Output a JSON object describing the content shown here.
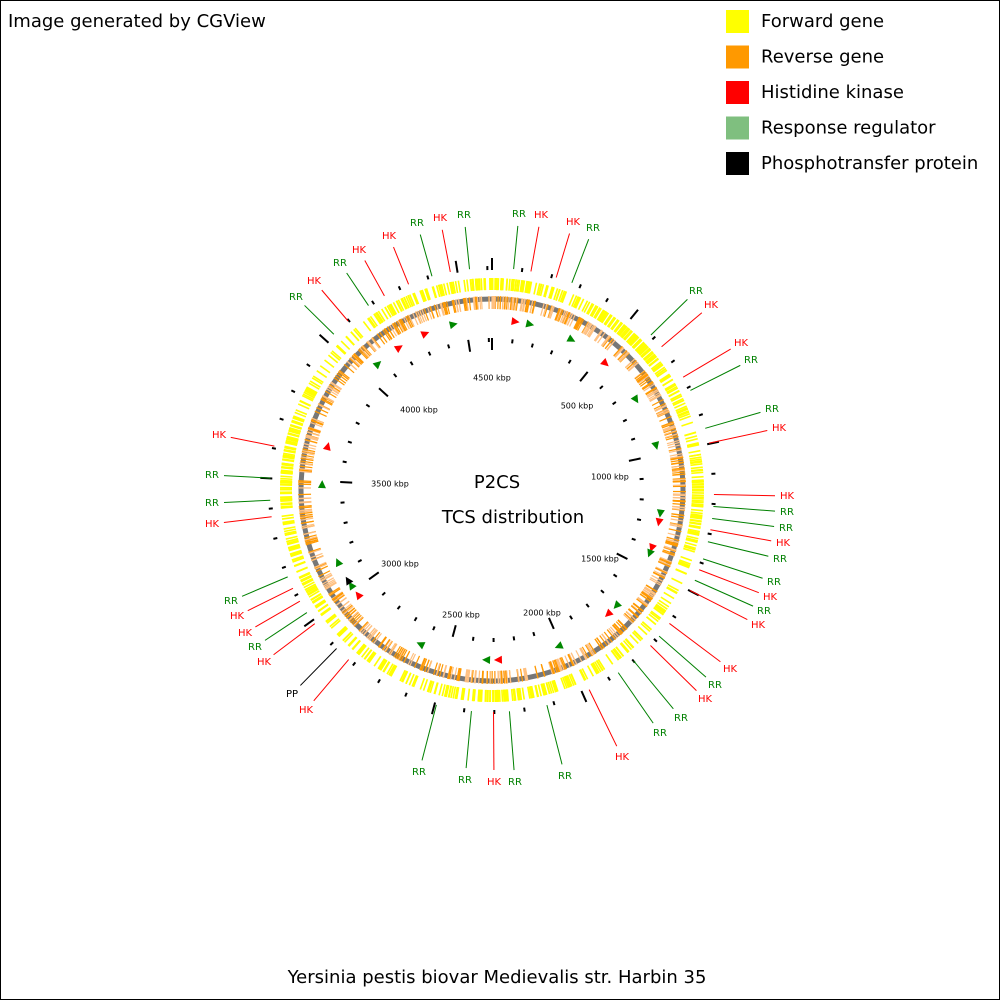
{
  "header": {
    "credit": "Image generated by CGView"
  },
  "legend": [
    {
      "label": "Forward gene",
      "color": "#ffff00"
    },
    {
      "label": "Reverse gene",
      "color": "#ff9900"
    },
    {
      "label": "Histidine kinase",
      "color": "#ff0000"
    },
    {
      "label": "Response regulator",
      "color": "#7fbf7f"
    },
    {
      "label": "Phosphotransfer protein",
      "color": "#000000"
    }
  ],
  "center": {
    "title": "P2CS",
    "subtitle": "TCS distribution"
  },
  "scale_labels": [
    "500 kbp",
    "1000 kbp",
    "1500 kbp",
    "2000 kbp",
    "2500 kbp",
    "3000 kbp",
    "3500 kbp",
    "4000 kbp",
    "4500 kbp"
  ],
  "features": [
    {
      "label": "RR",
      "color": "#008000"
    },
    {
      "label": "HK",
      "color": "#ff0000"
    },
    {
      "label": "HK",
      "color": "#ff0000"
    },
    {
      "label": "RR",
      "color": "#008000"
    },
    {
      "label": "RR",
      "color": "#008000"
    },
    {
      "label": "HK",
      "color": "#ff0000"
    },
    {
      "label": "HK",
      "color": "#ff0000"
    },
    {
      "label": "RR",
      "color": "#008000"
    },
    {
      "label": "RR",
      "color": "#008000"
    },
    {
      "label": "HK",
      "color": "#ff0000"
    },
    {
      "label": "HK",
      "color": "#ff0000"
    },
    {
      "label": "RR",
      "color": "#008000"
    },
    {
      "label": "RR",
      "color": "#008000"
    },
    {
      "label": "HK",
      "color": "#ff0000"
    },
    {
      "label": "RR",
      "color": "#008000"
    },
    {
      "label": "RR",
      "color": "#008000"
    },
    {
      "label": "HK",
      "color": "#ff0000"
    },
    {
      "label": "RR",
      "color": "#008000"
    },
    {
      "label": "HK",
      "color": "#ff0000"
    },
    {
      "label": "HK",
      "color": "#ff0000"
    },
    {
      "label": "RR",
      "color": "#008000"
    },
    {
      "label": "HK",
      "color": "#ff0000"
    },
    {
      "label": "RR",
      "color": "#008000"
    },
    {
      "label": "RR",
      "color": "#008000"
    },
    {
      "label": "HK",
      "color": "#ff0000"
    },
    {
      "label": "RR",
      "color": "#008000"
    },
    {
      "label": "RR",
      "color": "#008000"
    },
    {
      "label": "HK",
      "color": "#ff0000"
    },
    {
      "label": "RR",
      "color": "#008000"
    },
    {
      "label": "RR",
      "color": "#008000"
    },
    {
      "label": "HK",
      "color": "#ff0000"
    },
    {
      "label": "PP",
      "color": "#000000"
    },
    {
      "label": "HK",
      "color": "#ff0000"
    },
    {
      "label": "RR",
      "color": "#008000"
    },
    {
      "label": "HK",
      "color": "#ff0000"
    },
    {
      "label": "HK",
      "color": "#ff0000"
    },
    {
      "label": "RR",
      "color": "#008000"
    },
    {
      "label": "HK",
      "color": "#ff0000"
    },
    {
      "label": "RR",
      "color": "#008000"
    },
    {
      "label": "RR",
      "color": "#008000"
    },
    {
      "label": "HK",
      "color": "#ff0000"
    },
    {
      "label": "RR",
      "color": "#008000"
    },
    {
      "label": "HK",
      "color": "#ff0000"
    },
    {
      "label": "RR",
      "color": "#008000"
    },
    {
      "label": "HK",
      "color": "#ff0000"
    },
    {
      "label": "HK",
      "color": "#ff0000"
    },
    {
      "label": "RR",
      "color": "#008000"
    },
    {
      "label": "HK",
      "color": "#ff0000"
    },
    {
      "label": "RR",
      "color": "#008000"
    }
  ],
  "footer": {
    "organism": "Yersinia pestis biovar Medievalis str. Harbin 35"
  }
}
